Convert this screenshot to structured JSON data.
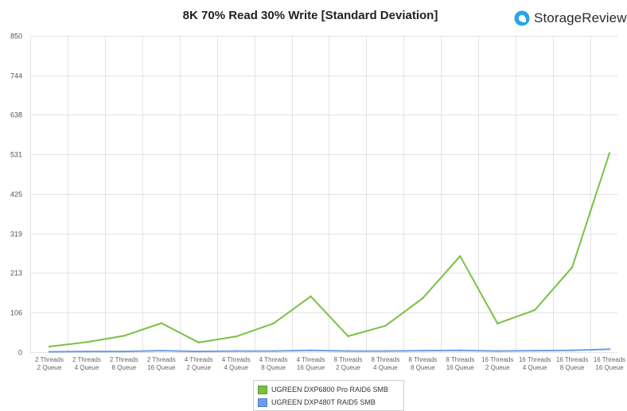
{
  "header": {
    "title": "8K 70% Read 30% Write [Standard Deviation]",
    "brand": "StorageReview"
  },
  "chart_data": {
    "type": "line",
    "title": "8K 70% Read 30% Write [Standard Deviation]",
    "xlabel": "",
    "ylabel": "",
    "ylim": [
      0,
      850
    ],
    "yticks": [
      "850",
      "744",
      "638",
      "531",
      "425",
      "319",
      "213",
      "106",
      "0"
    ],
    "categories": [
      [
        "2 Threads",
        "2 Queue"
      ],
      [
        "2 Threads",
        "4 Queue"
      ],
      [
        "2 Threads",
        "8 Queue"
      ],
      [
        "2 Threads",
        "16 Queue"
      ],
      [
        "4 Threads",
        "2 Queue"
      ],
      [
        "4 Threads",
        "4 Queue"
      ],
      [
        "4 Threads",
        "8 Queue"
      ],
      [
        "4 Threads",
        "16 Queue"
      ],
      [
        "8 Threads",
        "2 Queue"
      ],
      [
        "8 Threads",
        "4 Queue"
      ],
      [
        "8 Threads",
        "8 Queue"
      ],
      [
        "8 Threads",
        "16 Queue"
      ],
      [
        "16 Threads",
        "2 Queue"
      ],
      [
        "16 Threads",
        "4 Queue"
      ],
      [
        "16 Threads",
        "8 Queue"
      ],
      [
        "16 Threads",
        "16 Queue"
      ]
    ],
    "grid": true,
    "legend_position": "bottom",
    "series": [
      {
        "name": "UGREEN DXP6800 Pro RAID6 SMB",
        "color": "#7ac143",
        "values": [
          15,
          27,
          44,
          78,
          26,
          42,
          77,
          150,
          43,
          71,
          145,
          258,
          77,
          113,
          228,
          535
        ]
      },
      {
        "name": "UGREEN DXP480T RAID5 SMB",
        "color": "#6f9ce6",
        "values": [
          1,
          2,
          2,
          4,
          2,
          3,
          3,
          5,
          3,
          3,
          4,
          5,
          3,
          4,
          5,
          8
        ]
      }
    ]
  }
}
